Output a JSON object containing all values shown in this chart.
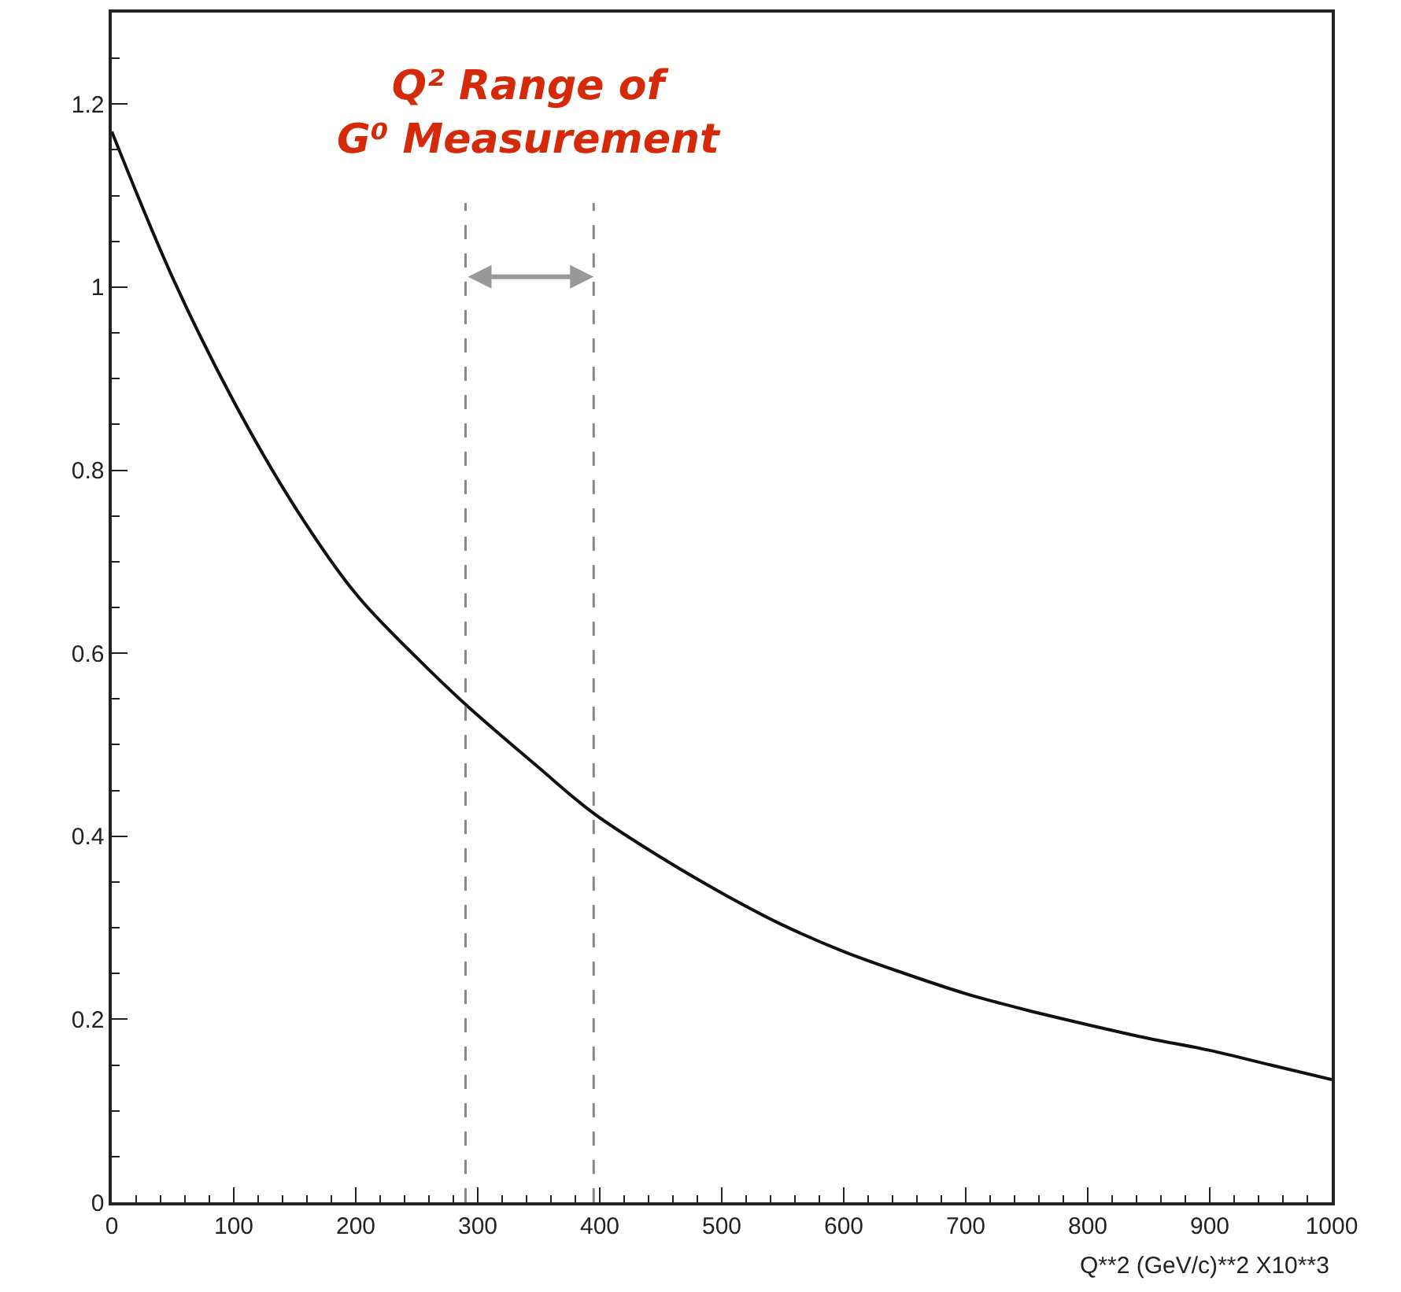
{
  "chart_data": {
    "type": "line",
    "xlabel": "Q**2 (GeV/c)**2 X10**3",
    "x": [
      0,
      50,
      100,
      150,
      200,
      250,
      290,
      350,
      395,
      450,
      500,
      550,
      600,
      650,
      700,
      750,
      800,
      850,
      900,
      950,
      1000
    ],
    "series": [
      {
        "color": "#111111",
        "values": [
          1.17,
          1.01,
          0.875,
          0.76,
          0.665,
          0.595,
          0.544,
          0.475,
          0.425,
          0.377,
          0.338,
          0.303,
          0.274,
          0.25,
          0.228,
          0.21,
          0.194,
          0.179,
          0.166,
          0.15,
          0.134
        ]
      }
    ],
    "xlim": [
      0,
      1000
    ],
    "xticks": [
      0,
      100,
      200,
      300,
      400,
      500,
      600,
      700,
      800,
      900,
      1000
    ],
    "ylim": [
      0,
      1.3
    ],
    "yticks": [
      0,
      0.2,
      0.4,
      0.6,
      0.8,
      1,
      1.2
    ],
    "ref_lines": [
      {
        "axis": "x",
        "value": 290,
        "color": "#888888",
        "line_style": "dashed"
      },
      {
        "axis": "x",
        "value": 395,
        "color": "#888888",
        "line_style": "dashed"
      }
    ],
    "annotations": [
      "Q² Range of\nG⁰ Measurement"
    ],
    "line_style": "solid"
  }
}
